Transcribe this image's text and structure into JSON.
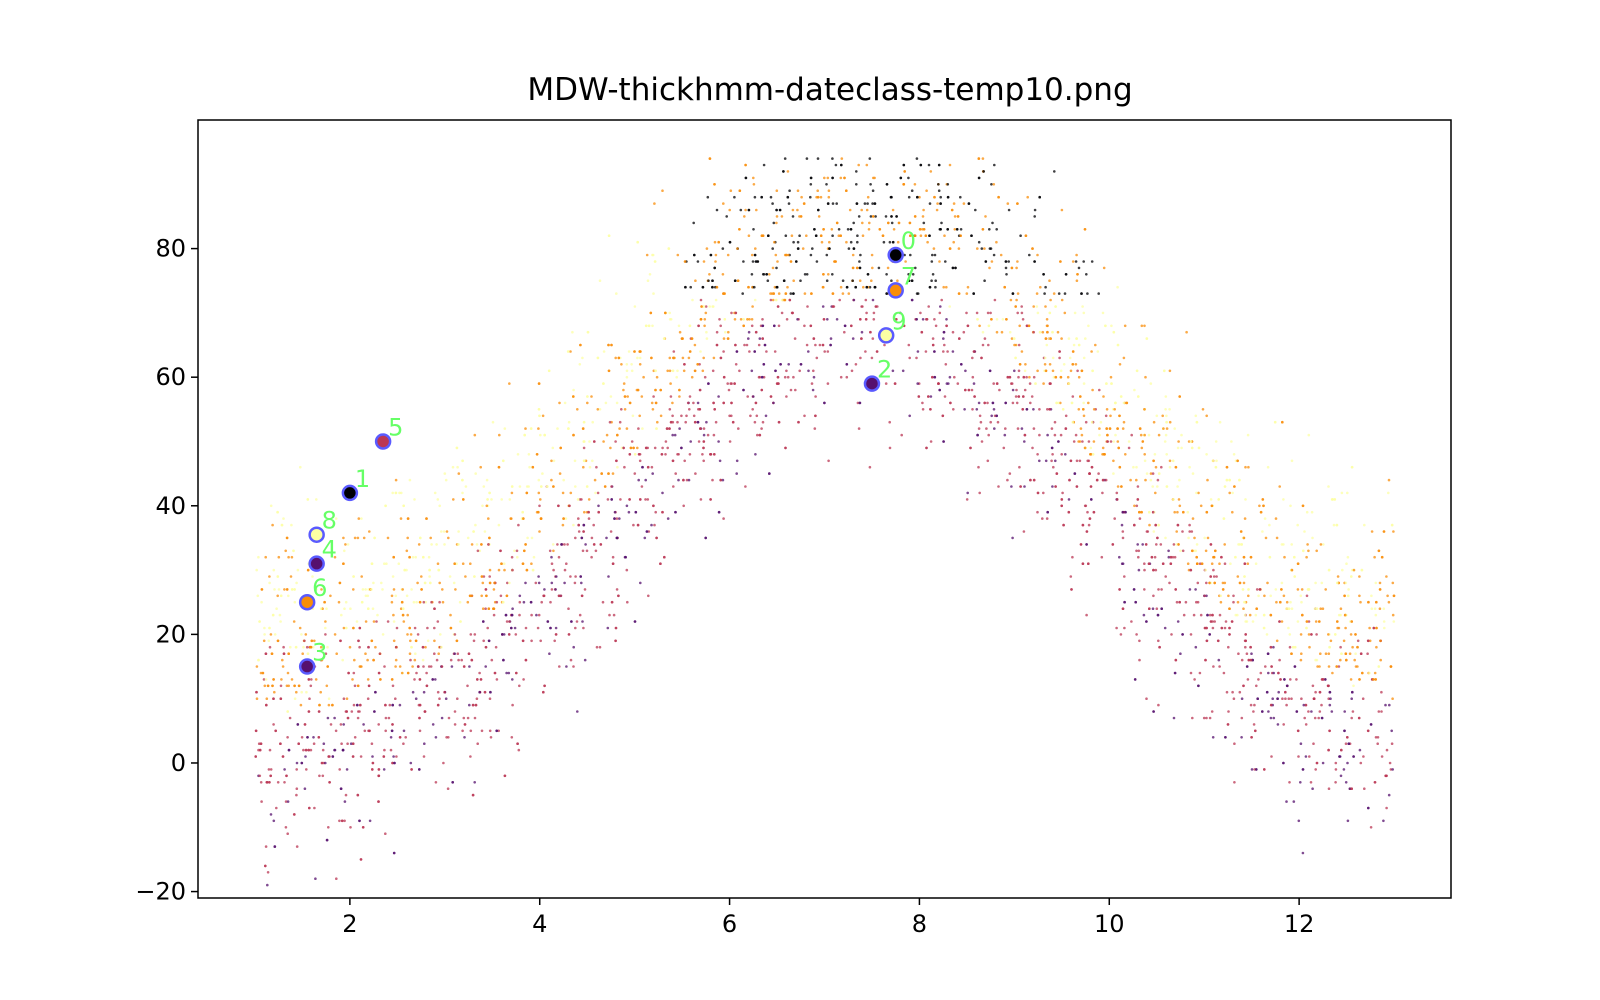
{
  "chart_data": {
    "type": "scatter",
    "title": "MDW-thickhmm-dateclass-temp10.png",
    "xlabel": "",
    "ylabel": "",
    "xlim": [
      0.4,
      13.6
    ],
    "ylim": [
      -21,
      100
    ],
    "xticks": [
      2,
      4,
      6,
      8,
      10,
      12
    ],
    "yticks": [
      -20,
      0,
      20,
      40,
      60,
      80
    ],
    "grid": false,
    "legend": "none",
    "background_points": {
      "description_of_density": "dense dot cloud of daily temperature vs month, colored by class",
      "colors": [
        "#000004",
        "#56106e",
        "#bb3754",
        "#f98e09",
        "#fcffa4"
      ]
    },
    "centroids": [
      {
        "label": "0",
        "x": 7.75,
        "y": 79,
        "color": "#000004"
      },
      {
        "label": "1",
        "x": 2.0,
        "y": 42,
        "color": "#000004"
      },
      {
        "label": "2",
        "x": 7.5,
        "y": 59,
        "color": "#56106e"
      },
      {
        "label": "3",
        "x": 1.55,
        "y": 15,
        "color": "#56106e"
      },
      {
        "label": "4",
        "x": 1.65,
        "y": 31,
        "color": "#56106e"
      },
      {
        "label": "5",
        "x": 2.35,
        "y": 50,
        "color": "#bb3754"
      },
      {
        "label": "6",
        "x": 1.55,
        "y": 25,
        "color": "#f98e09"
      },
      {
        "label": "7",
        "x": 7.75,
        "y": 73.5,
        "color": "#f98e09"
      },
      {
        "label": "8",
        "x": 1.65,
        "y": 35.5,
        "color": "#fcffa4"
      },
      {
        "label": "9",
        "x": 7.65,
        "y": 66.5,
        "color": "#fcffa4"
      }
    ],
    "centroid_edge_color": "#5a5aff",
    "centroid_label_color": "#66ff66"
  }
}
